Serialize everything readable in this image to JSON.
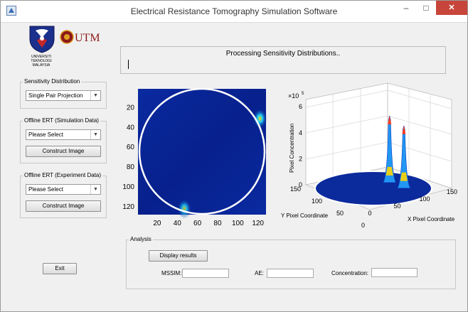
{
  "window": {
    "title": "Electrical Resistance Tomography Simulation Software",
    "minimize_glyph": "–",
    "maximize_glyph": "□",
    "close_glyph": "✕"
  },
  "logos": {
    "left_caption": "UNIVERSITI TEKNOLOGI MALAYSIA",
    "right_text": "UTM"
  },
  "status": {
    "message": "Processing Sensitivity Distributions.."
  },
  "sensitivity": {
    "title": "Sensitivity Distribution",
    "selected": "Single Pair Projection"
  },
  "offline_sim": {
    "title": "Offline ERT (Simulation Data)",
    "selected": "Please Select",
    "button": "Construct Image"
  },
  "offline_exp": {
    "title": "Offline ERT (Experiment Data)",
    "selected": "Please Select",
    "button": "Construct Image"
  },
  "exit_button": "Exit",
  "analysis": {
    "title": "Analysis",
    "display_button": "Display results",
    "mssim_label": "MSSIM:",
    "ae_label": "AE:",
    "concentration_label": "Concentration:",
    "mssim_value": "",
    "ae_value": "",
    "concentration_value": ""
  },
  "chart_data": [
    {
      "type": "heatmap",
      "x_ticks": [
        "20",
        "40",
        "60",
        "80",
        "100",
        "120"
      ],
      "y_ticks": [
        "20",
        "40",
        "60",
        "80",
        "100",
        "120"
      ],
      "xlim": [
        1,
        128
      ],
      "ylim": [
        1,
        128
      ],
      "colormap": "jet",
      "background": "#081f8f",
      "circle_color": "#ffffff",
      "hotspots": [
        {
          "x": 122,
          "y": 31,
          "intensity": 0.35
        },
        {
          "x": 47,
          "y": 122,
          "intensity": 0.3
        }
      ]
    },
    {
      "type": "surface3d",
      "title": "",
      "scale_label": "×10",
      "scale_exp": "5",
      "zlabel": "Pixel Concentration",
      "xlabel": "X Pixel Coordinate",
      "ylabel": "Y Pixel Coordinate",
      "z_ticks": [
        "0",
        "2",
        "4",
        "6"
      ],
      "x_ticks": [
        "0",
        "50",
        "100",
        "150"
      ],
      "y_ticks": [
        "0",
        "50",
        "100",
        "150"
      ],
      "zlim": [
        0,
        6
      ],
      "peaks": [
        {
          "x": 105,
          "y": 55,
          "z": 4.4
        },
        {
          "x": 110,
          "y": 95,
          "z": 4.7
        }
      ],
      "grid": true
    }
  ]
}
